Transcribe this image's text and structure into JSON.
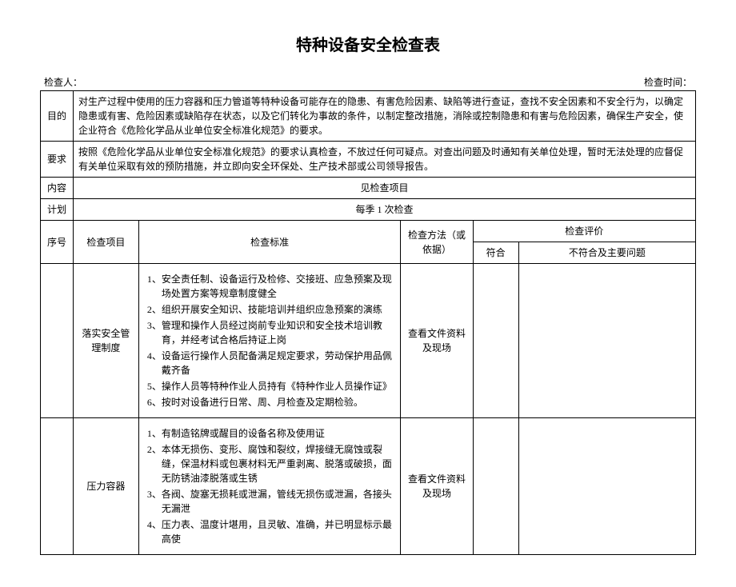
{
  "title": "特种设备安全检查表",
  "inspector_label": "检查人：",
  "time_label": "检查时间：",
  "rows": {
    "purpose_label": "目的",
    "purpose_text": "对生产过程中使用的压力容器和压力管道等特种设备可能存在的隐患、有害危险因素、缺陷等进行查证，查找不安全因素和不安全行为，以确定隐患或有害、危险因素或缺陷存在状态，以及它们转化为事故的条件，以制定整改措施，消除或控制隐患和有害与危险因素，确保生产安全，使企业符合《危险化学品从业单位安全标准化规范》的要求。",
    "requirement_label": "要求",
    "requirement_text": "按照《危险化学品从业单位安全标准化规范》的要求认真检查，不放过任何可疑点。对查出问题及时通知有关单位处理，暂时无法处理的应督促有关单位采取有效的预防措施，并立即向安全环保处、生产技术部或公司领导报告。",
    "content_label": "内容",
    "content_text": "见检查项目",
    "plan_label": "计划",
    "plan_text": "每季 1 次检查"
  },
  "header": {
    "seq": "序号",
    "item": "检查项目",
    "standard": "检查标准",
    "method": "检查方法（或依据）",
    "eval": "检查评价",
    "conform": "符合",
    "nonconform": "不符合及主要问题"
  },
  "items": [
    {
      "seq": "",
      "name": "落实安全管理制度",
      "standards": [
        "1、安全责任制、设备运行及检修、交接班、应急预案及现场处置方案等规章制度健全",
        "2、组织开展安全知识、技能培训并组织应急预案的演练",
        "3、管理和操作人员经过岗前专业知识和安全技术培训教育，并经考试合格后持证上岗",
        "4、设备运行操作人员配备满足规定要求，劳动保护用品佩戴齐备",
        "5、操作人员等特种作业人员持有《特种作业人员操作证》",
        "6、按时对设备进行日常、周、月检查及定期检验。"
      ],
      "method": "查看文件资料及现场"
    },
    {
      "seq": "",
      "name": "压力容器",
      "standards": [
        "1、有制造铭牌或醒目的设备名称及使用证",
        "2、本体无损伤、变形、腐蚀和裂纹，焊接缝无腐蚀或裂缝，保温材料或包裹材料无严重剥离、脱落或破损，面无防锈油漆脱落或生锈",
        "3、各阀、旋塞无损耗或泄漏，管线无损伤或泄漏，各接头无漏泄",
        "4、压力表、温度计堪用，且灵敏、准确，并已明显标示最高使"
      ],
      "method": "查看文件资料及现场"
    }
  ]
}
